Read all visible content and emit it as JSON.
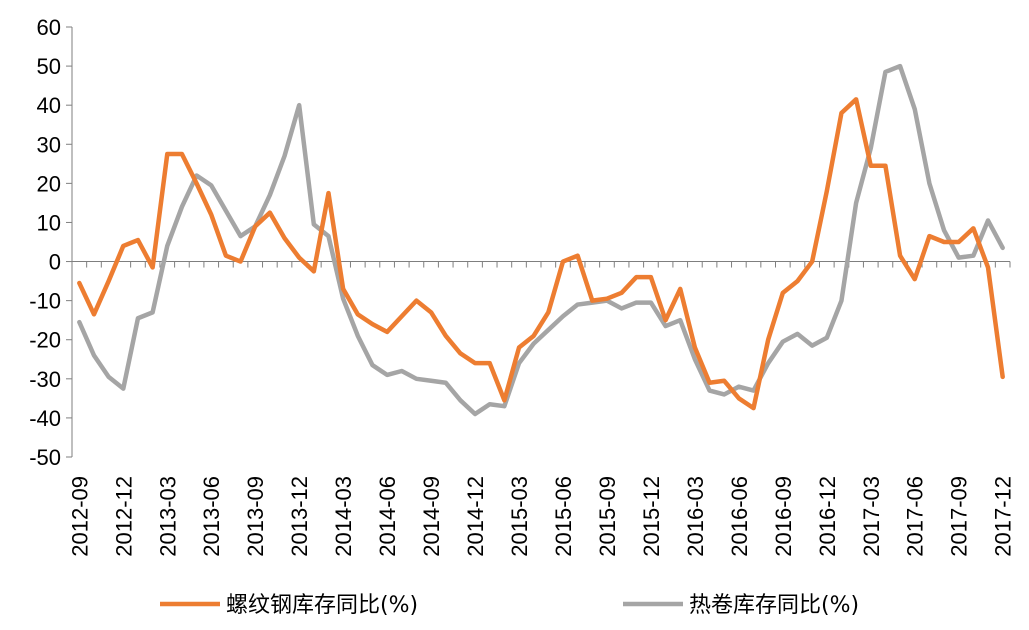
{
  "chart_data": {
    "type": "line",
    "title": "",
    "xlabel": "",
    "ylabel": "",
    "ylim": [
      -50,
      60
    ],
    "yticks": [
      60,
      50,
      40,
      30,
      20,
      10,
      0,
      -10,
      -20,
      -30,
      -40,
      -50
    ],
    "grid": false,
    "legend_position": "bottom",
    "x": [
      "2012-09",
      "2012-10",
      "2012-11",
      "2012-12",
      "2013-01",
      "2013-02",
      "2013-03",
      "2013-04",
      "2013-05",
      "2013-06",
      "2013-07",
      "2013-08",
      "2013-09",
      "2013-10",
      "2013-11",
      "2013-12",
      "2014-01",
      "2014-02",
      "2014-03",
      "2014-04",
      "2014-05",
      "2014-06",
      "2014-07",
      "2014-08",
      "2014-09",
      "2014-10",
      "2014-11",
      "2014-12",
      "2015-01",
      "2015-02",
      "2015-03",
      "2015-04",
      "2015-05",
      "2015-06",
      "2015-07",
      "2015-08",
      "2015-09",
      "2015-10",
      "2015-11",
      "2015-12",
      "2016-01",
      "2016-02",
      "2016-03",
      "2016-04",
      "2016-05",
      "2016-06",
      "2016-07",
      "2016-08",
      "2016-09",
      "2016-10",
      "2016-11",
      "2016-12",
      "2017-01",
      "2017-02",
      "2017-03",
      "2017-04",
      "2017-05",
      "2017-06",
      "2017-07",
      "2017-08",
      "2017-09",
      "2017-10",
      "2017-11",
      "2017-12"
    ],
    "x_tick_labels": [
      "2012-09",
      "2012-12",
      "2013-03",
      "2013-06",
      "2013-09",
      "2013-12",
      "2014-03",
      "2014-06",
      "2014-09",
      "2014-12",
      "2015-03",
      "2015-06",
      "2015-09",
      "2015-12",
      "2016-03",
      "2016-06",
      "2016-09",
      "2016-12",
      "2017-03",
      "2017-06",
      "2017-09",
      "2017-12"
    ],
    "series": [
      {
        "name": "螺纹钢库存同比(%)",
        "color": "#ED7D31",
        "values": [
          -5.5,
          -13.5,
          -5,
          4,
          5.5,
          -1.5,
          27.5,
          27.5,
          20,
          12,
          1.5,
          0,
          9,
          12.5,
          6,
          1,
          -2.5,
          17.5,
          -7,
          -13.5,
          -16,
          -18,
          -14,
          -10,
          -13,
          -19,
          -23.5,
          -26,
          -26,
          -35.5,
          -22,
          -19,
          -13,
          0,
          1.5,
          -10,
          -9.5,
          -8,
          -4,
          -4,
          -15,
          -7,
          -22,
          -31,
          -30.5,
          -35,
          -37.5,
          -20,
          -8,
          -5,
          0,
          18,
          38,
          41.5,
          24.5,
          24.5,
          1.5,
          -4.5,
          6.5,
          5,
          5,
          8.5,
          -1.5,
          -29.5
        ]
      },
      {
        "name": "热卷库存同比(%)",
        "color": "#A5A5A5",
        "values": [
          -15.5,
          -24,
          -29.5,
          -32.5,
          -14.5,
          -13,
          4,
          14,
          22,
          19.5,
          13,
          6.5,
          9,
          17,
          27,
          40,
          9.5,
          6.5,
          -9.5,
          -19,
          -26.5,
          -29,
          -28,
          -30,
          -30.5,
          -31,
          -35.5,
          -39,
          -36.5,
          -37,
          -26,
          -21,
          -17.5,
          -14,
          -11,
          -10.5,
          -10,
          -12,
          -10.5,
          -10.5,
          -16.5,
          -15,
          -25,
          -33,
          -34,
          -32,
          -33,
          -26,
          -20.5,
          -18.5,
          -21.5,
          -19.5,
          -10,
          15,
          29,
          48.5,
          50,
          39,
          20,
          8,
          1,
          1.5,
          10.5,
          3.5
        ]
      }
    ]
  }
}
